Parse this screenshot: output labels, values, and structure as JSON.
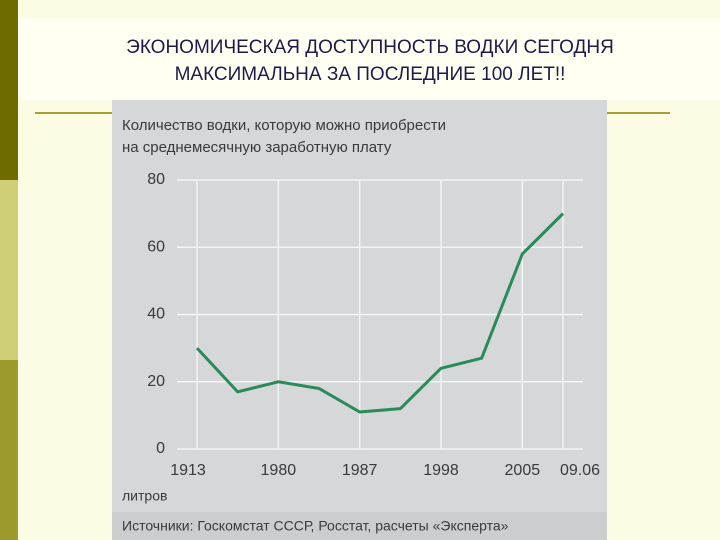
{
  "slide": {
    "title_lines": [
      "ЭКОНОМИЧЕСКАЯ ДОСТУПНОСТЬ ВОДКИ СЕГОДНЯ",
      "МАКСИМАЛЬНА ЗА ПОСЛЕДНИЕ 100 ЛЕТ!!"
    ]
  },
  "chart_data": {
    "type": "line",
    "title_lines": [
      "Количество водки, которую можно приобрести",
      "на среднемесячную заработную плату"
    ],
    "y_unit": "литров",
    "source": "Источники: Госкомстат СССР, Росстат, расчеты «Эксперта»",
    "categories": [
      "1913",
      null,
      "1980",
      null,
      "1987",
      null,
      "1998",
      null,
      "2005",
      "09.06"
    ],
    "series": [
      {
        "name": "литров",
        "color": "#2a8a5a",
        "values": [
          30,
          17,
          20,
          18,
          11,
          12,
          24,
          27,
          58,
          70
        ]
      }
    ],
    "ylim": [
      0,
      80
    ],
    "yticks": [
      0,
      20,
      40,
      60,
      80
    ],
    "grid": true
  }
}
